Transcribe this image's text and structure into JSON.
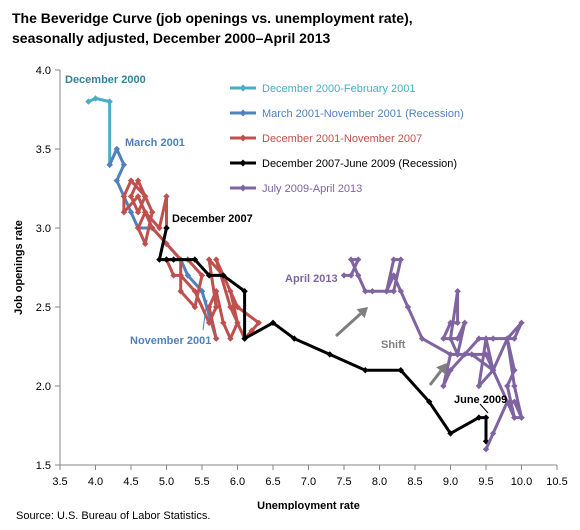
{
  "title_line1": "The Beveridge Curve (job openings vs. unemployment rate),",
  "title_line2": "seasonally adjusted, December 2000–April 2013",
  "source": "Source: U.S. Bureau of Labor Statistics.",
  "chart_data": {
    "type": "line",
    "xlabel": "Unemployment rate",
    "ylabel": "Job openings rate",
    "xlim": [
      3.5,
      10.5
    ],
    "ylim": [
      1.5,
      4.0
    ],
    "xticks": [
      "3.5",
      "4.0",
      "4.5",
      "5.0",
      "5.5",
      "6.0",
      "6.5",
      "7.0",
      "7.5",
      "8.0",
      "8.5",
      "9.0",
      "9.5",
      "10.0",
      "10.5"
    ],
    "yticks": [
      "1.5",
      "2.0",
      "2.5",
      "3.0",
      "3.5",
      "4.0"
    ],
    "grid": false,
    "legend_position": "top-right",
    "series": [
      {
        "name": "December 2000-February 2001",
        "color": "#4bacc6",
        "points": [
          [
            3.9,
            3.8
          ],
          [
            4.0,
            3.82
          ],
          [
            4.2,
            3.8
          ],
          [
            4.2,
            3.4
          ]
        ]
      },
      {
        "name": "March 2001-November 2001 (Recession)",
        "color": "#4f81bd",
        "points": [
          [
            4.2,
            3.4
          ],
          [
            4.3,
            3.5
          ],
          [
            4.4,
            3.4
          ],
          [
            4.3,
            3.3
          ],
          [
            4.4,
            3.2
          ],
          [
            4.5,
            3.1
          ],
          [
            4.6,
            3.0
          ],
          [
            4.8,
            3.0
          ],
          [
            5.0,
            2.9
          ],
          [
            5.2,
            2.8
          ],
          [
            5.3,
            2.7
          ],
          [
            5.5,
            2.6
          ],
          [
            5.7,
            2.3
          ]
        ]
      },
      {
        "name": "December 2001-November 2007",
        "color": "#c0504d",
        "points": [
          [
            5.7,
            2.3
          ],
          [
            5.6,
            2.5
          ],
          [
            5.7,
            2.6
          ],
          [
            5.8,
            2.4
          ],
          [
            5.9,
            2.3
          ],
          [
            6.0,
            2.4
          ],
          [
            5.9,
            2.6
          ],
          [
            5.7,
            2.8
          ],
          [
            5.9,
            2.5
          ],
          [
            6.1,
            2.3
          ],
          [
            6.2,
            2.35
          ],
          [
            6.3,
            2.4
          ],
          [
            6.0,
            2.5
          ],
          [
            5.8,
            2.7
          ],
          [
            5.6,
            2.8
          ],
          [
            5.7,
            2.5
          ],
          [
            5.6,
            2.4
          ],
          [
            5.4,
            2.6
          ],
          [
            5.2,
            2.7
          ],
          [
            5.1,
            2.7
          ],
          [
            5.0,
            2.8
          ],
          [
            5.3,
            2.8
          ],
          [
            5.5,
            2.7
          ],
          [
            5.4,
            2.5
          ],
          [
            5.2,
            2.6
          ],
          [
            5.2,
            2.8
          ],
          [
            5.0,
            2.9
          ],
          [
            4.8,
            3.0
          ],
          [
            4.7,
            3.1
          ],
          [
            4.6,
            3.0
          ],
          [
            4.7,
            2.9
          ],
          [
            4.8,
            3.1
          ],
          [
            4.7,
            3.2
          ],
          [
            4.6,
            3.3
          ],
          [
            4.5,
            3.2
          ],
          [
            4.6,
            3.1
          ],
          [
            4.7,
            3.2
          ],
          [
            4.5,
            3.3
          ],
          [
            4.4,
            3.2
          ],
          [
            4.4,
            3.1
          ],
          [
            4.6,
            3.2
          ],
          [
            4.7,
            3.1
          ],
          [
            4.9,
            3.0
          ],
          [
            5.0,
            3.2
          ],
          [
            5.0,
            3.0
          ]
        ]
      },
      {
        "name": "December 2007-June 2009 (Recession)",
        "color": "#000000",
        "points": [
          [
            5.0,
            3.0
          ],
          [
            4.9,
            2.8
          ],
          [
            5.0,
            2.8
          ],
          [
            5.1,
            2.8
          ],
          [
            5.4,
            2.8
          ],
          [
            5.6,
            2.7
          ],
          [
            5.8,
            2.7
          ],
          [
            6.1,
            2.6
          ],
          [
            6.1,
            2.3
          ],
          [
            6.5,
            2.4
          ],
          [
            6.8,
            2.3
          ],
          [
            7.3,
            2.2
          ],
          [
            7.8,
            2.1
          ],
          [
            8.3,
            2.1
          ],
          [
            8.7,
            1.9
          ],
          [
            9.0,
            1.7
          ],
          [
            9.4,
            1.8
          ],
          [
            9.5,
            1.8
          ],
          [
            9.5,
            1.65
          ]
        ]
      },
      {
        "name": "July 2009-April 2013",
        "color": "#8064a2",
        "points": [
          [
            9.5,
            1.6
          ],
          [
            9.6,
            1.7
          ],
          [
            9.8,
            1.9
          ],
          [
            9.9,
            1.9
          ],
          [
            10.0,
            1.8
          ],
          [
            9.9,
            1.8
          ],
          [
            9.8,
            2.0
          ],
          [
            9.9,
            2.1
          ],
          [
            9.8,
            2.3
          ],
          [
            9.6,
            2.1
          ],
          [
            9.4,
            2.0
          ],
          [
            9.5,
            2.3
          ],
          [
            9.6,
            2.1
          ],
          [
            9.3,
            2.2
          ],
          [
            9.1,
            2.2
          ],
          [
            9.0,
            2.3
          ],
          [
            9.1,
            2.6
          ],
          [
            9.1,
            2.4
          ],
          [
            9.0,
            2.4
          ],
          [
            8.9,
            2.3
          ],
          [
            9.1,
            2.3
          ],
          [
            9.2,
            2.4
          ],
          [
            9.1,
            2.2
          ],
          [
            9.0,
            2.2
          ],
          [
            8.9,
            2.0
          ],
          [
            9.0,
            2.1
          ],
          [
            9.4,
            2.3
          ],
          [
            9.6,
            2.3
          ],
          [
            9.9,
            2.3
          ],
          [
            10.0,
            2.4
          ],
          [
            9.8,
            2.3
          ],
          [
            9.9,
            2.0
          ],
          [
            10.0,
            1.8
          ],
          [
            9.9,
            1.8
          ],
          [
            9.5,
            2.2
          ],
          [
            9.2,
            2.2
          ],
          [
            9.0,
            2.2
          ],
          [
            8.6,
            2.3
          ],
          [
            8.4,
            2.5
          ],
          [
            8.3,
            2.6
          ],
          [
            8.2,
            2.7
          ],
          [
            8.1,
            2.6
          ],
          [
            8.2,
            2.6
          ],
          [
            8.3,
            2.8
          ],
          [
            8.2,
            2.8
          ],
          [
            8.1,
            2.6
          ],
          [
            7.9,
            2.6
          ],
          [
            7.8,
            2.6
          ],
          [
            7.7,
            2.7
          ],
          [
            7.6,
            2.8
          ],
          [
            7.7,
            2.8
          ],
          [
            7.6,
            2.7
          ],
          [
            7.5,
            2.7
          ]
        ]
      }
    ],
    "annotations": [
      {
        "text": "December 2000",
        "color": "#31849b"
      },
      {
        "text": "March 2001",
        "color": "#4f81bd"
      },
      {
        "text": "December 2007",
        "color": "#000000"
      },
      {
        "text": "November 2001",
        "color": "#4f81bd"
      },
      {
        "text": "April 2013",
        "color": "#8064a2"
      },
      {
        "text": "June 2009",
        "color": "#000000"
      },
      {
        "text": "Shift",
        "color": "#7f7f7f"
      }
    ]
  }
}
